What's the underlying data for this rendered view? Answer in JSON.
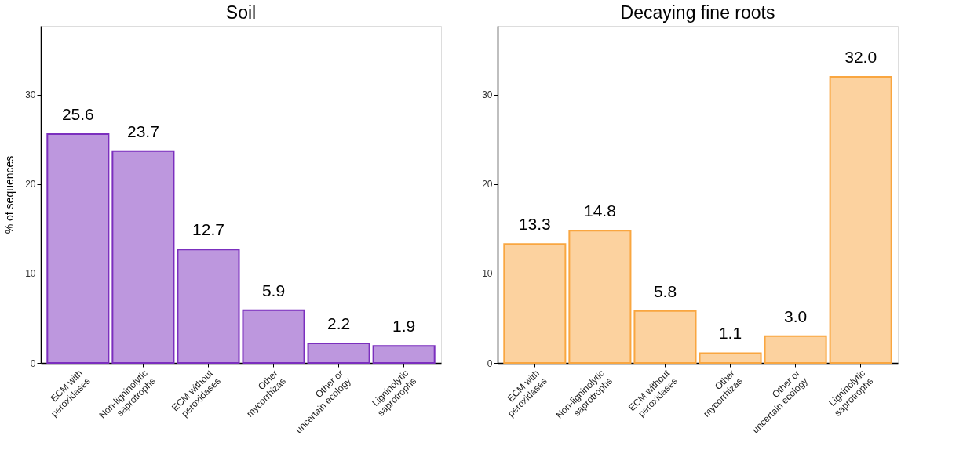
{
  "chart_data": [
    {
      "type": "bar",
      "title": "Soil",
      "ylabel": "% of sequences",
      "categories": [
        "ECM with\nperoxidases",
        "Non-ligninolytic\nsaprotrophs",
        "ECM without\nperoxidases",
        "Other\nmycorrhizas",
        "Other or\nuncertain ecology",
        "Ligninolytic\nsaprotrophs"
      ],
      "series": [
        {
          "color": "#7b2fbe",
          "values": [
            25.6,
            23.7,
            12.7,
            5.9,
            2.2,
            1.9
          ],
          "value_labels": [
            "25.6",
            "23.7",
            "12.7",
            "5.9",
            "2.2",
            "1.9"
          ]
        }
      ],
      "ylim": [
        0,
        37.7
      ],
      "yticks": [
        0,
        10,
        20,
        30
      ]
    },
    {
      "type": "bar",
      "title": "Decaying fine roots",
      "categories": [
        "ECM with\nperoxidases",
        "Non-ligninolytic\nsaprotrophs",
        "ECM without\nperoxidases",
        "Other\nmycorrhizas",
        "Other or\nuncertain ecology",
        "Ligninolytic\nsaprotrophs"
      ],
      "series": [
        {
          "color": "#f9a640",
          "values": [
            13.3,
            14.8,
            5.8,
            1.1,
            3.0,
            32.0
          ],
          "value_labels": [
            "13.3",
            "14.8",
            "5.8",
            "1.1",
            "3.0",
            "32.0"
          ]
        }
      ],
      "ylim": [
        0,
        37.7
      ],
      "yticks": [
        0,
        10,
        20,
        30
      ]
    }
  ]
}
